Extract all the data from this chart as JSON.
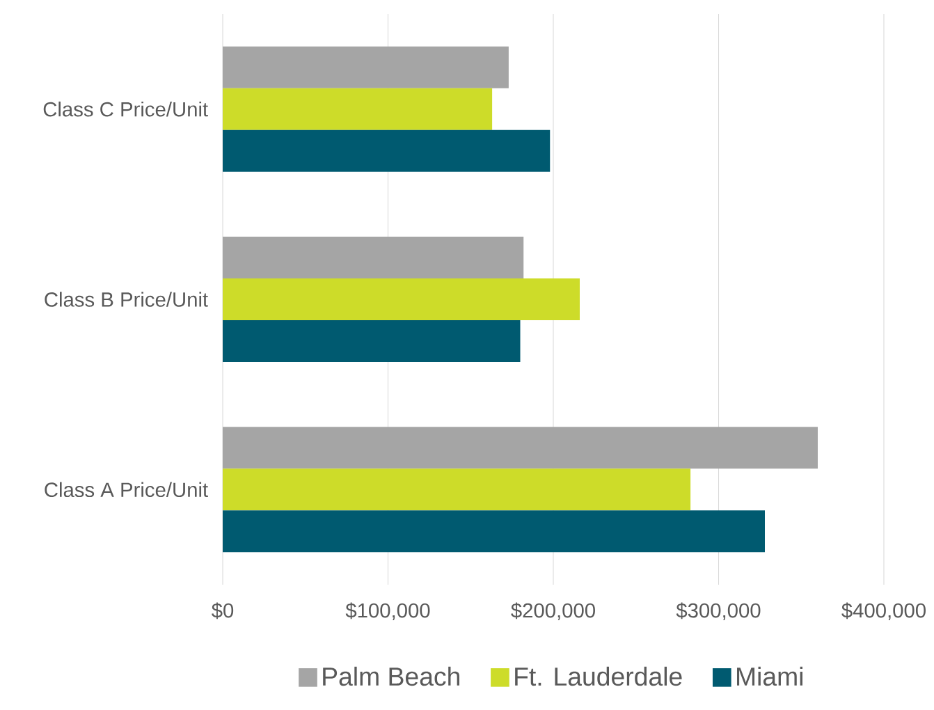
{
  "chart_data": {
    "type": "bar",
    "orientation": "horizontal",
    "categories": [
      "Class C Price/Unit",
      "Class B Price/Unit",
      "Class A Price/Unit"
    ],
    "series": [
      {
        "name": "Palm Beach",
        "color": "#a5a5a5",
        "values": [
          173000,
          182000,
          360000
        ]
      },
      {
        "name": "Ft. Lauderdale",
        "color": "#cddc29",
        "values": [
          163000,
          216000,
          283000
        ]
      },
      {
        "name": "Miami",
        "color": "#005a70",
        "values": [
          198000,
          180000,
          328000
        ]
      }
    ],
    "xlim": [
      0,
      400000
    ],
    "xticks": [
      {
        "value": 0,
        "label": "$0"
      },
      {
        "value": 100000,
        "label": "$100,000"
      },
      {
        "value": 200000,
        "label": "$200,000"
      },
      {
        "value": 300000,
        "label": "$300,000"
      },
      {
        "value": 400000,
        "label": "$400,000"
      }
    ],
    "grid": "x",
    "legend": "bottom"
  }
}
